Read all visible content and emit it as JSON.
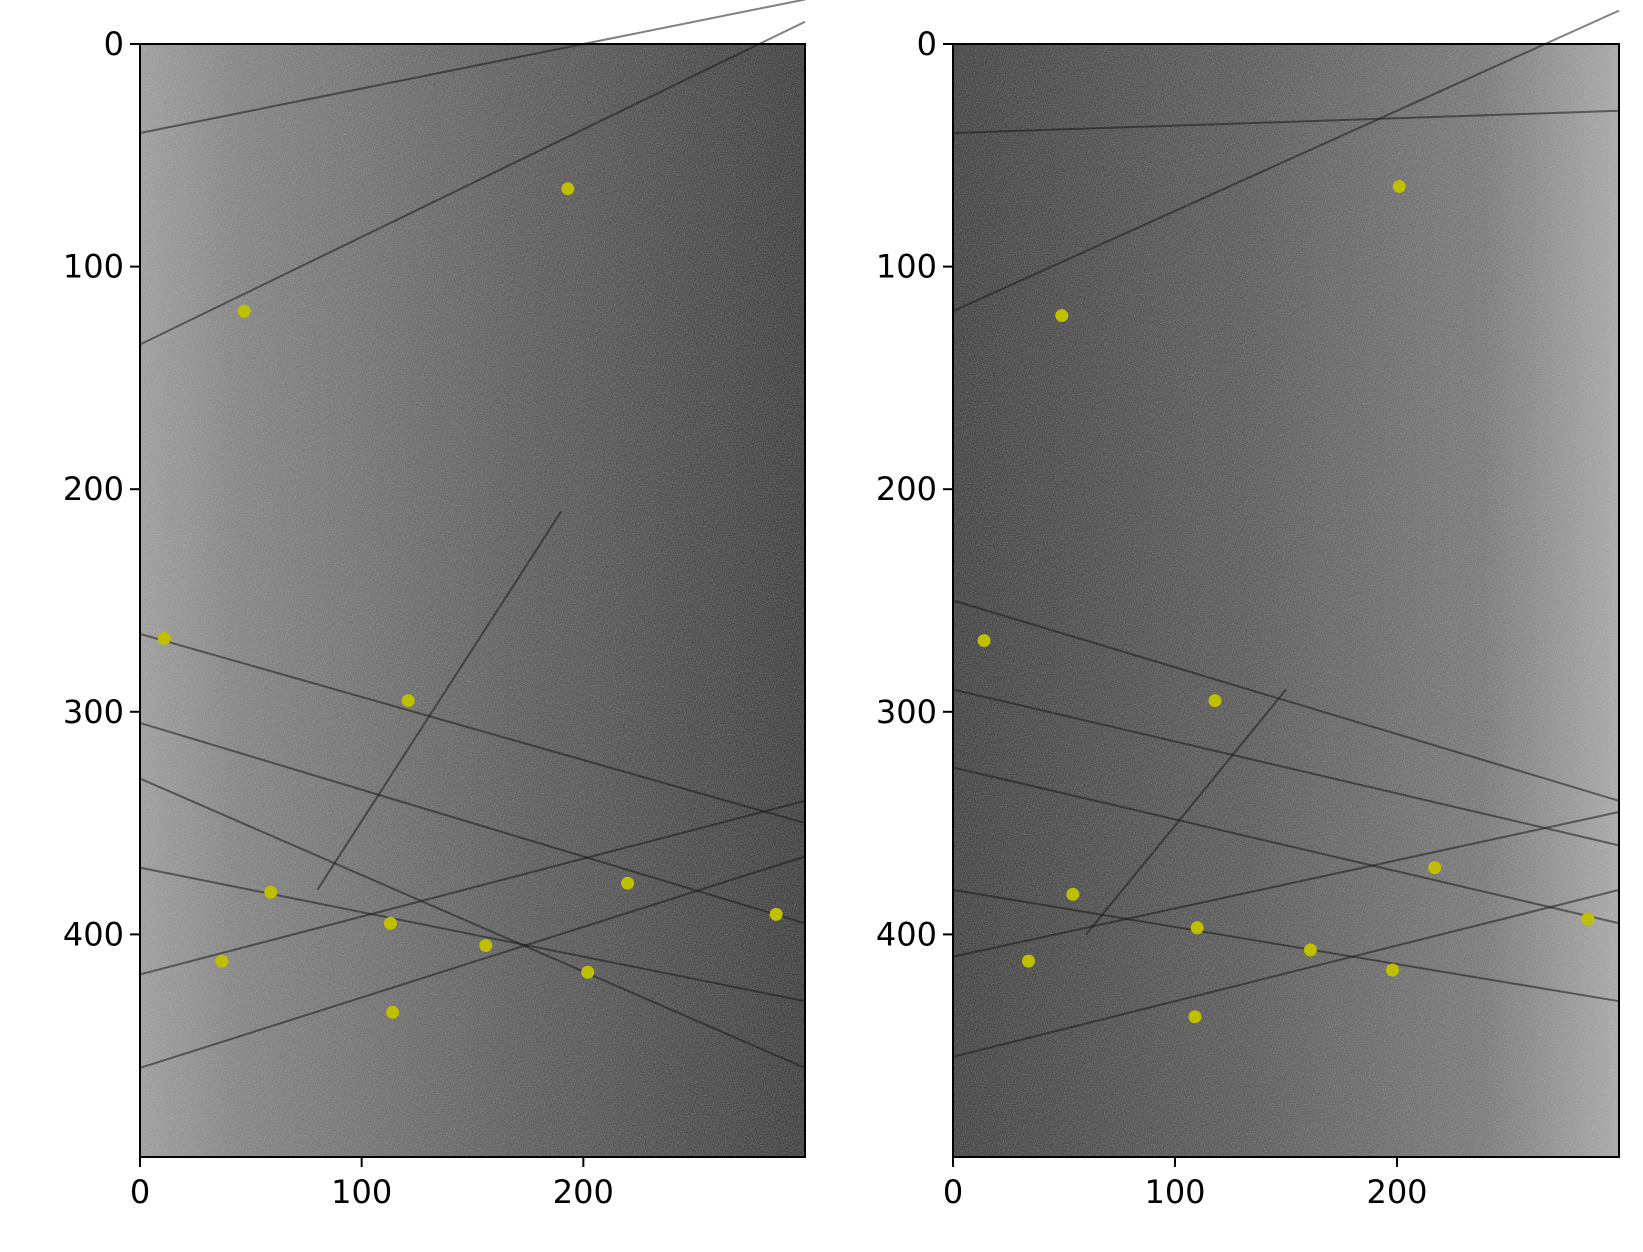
{
  "chart_data": [
    {
      "type": "scatter",
      "title": "",
      "xlabel": "",
      "ylabel": "",
      "xlim": [
        0,
        300
      ],
      "ylim": [
        500,
        0
      ],
      "y_inverted": true,
      "xticks": [
        0,
        100,
        200
      ],
      "yticks": [
        0,
        100,
        200,
        300,
        400
      ],
      "background": "grayscale sonar image, brighter on left edge, darker on right",
      "marker_color": "#bfbf00",
      "series": [
        {
          "x": [
            193,
            47,
            11,
            121,
            59,
            113,
            37,
            156,
            202,
            220,
            287,
            114
          ],
          "y": [
            65,
            120,
            267,
            295,
            381,
            395,
            412,
            405,
            417,
            377,
            391,
            435
          ]
        }
      ]
    },
    {
      "type": "scatter",
      "title": "",
      "xlabel": "",
      "ylabel": "",
      "xlim": [
        0,
        300
      ],
      "ylim": [
        500,
        0
      ],
      "y_inverted": true,
      "xticks": [
        0,
        100,
        200
      ],
      "yticks": [
        0,
        100,
        200,
        300,
        400
      ],
      "background": "grayscale sonar image, darker on left, brighter on right edge",
      "marker_color": "#bfbf00",
      "series": [
        {
          "x": [
            201,
            49,
            14,
            118,
            54,
            110,
            34,
            161,
            198,
            217,
            286,
            109
          ],
          "y": [
            64,
            122,
            268,
            295,
            382,
            397,
            412,
            407,
            416,
            370,
            393,
            437
          ]
        }
      ]
    }
  ]
}
